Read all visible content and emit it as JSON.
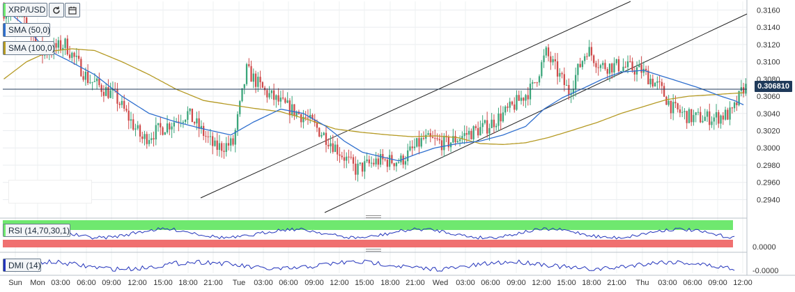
{
  "instrument": {
    "symbol_label": "XRP/USD",
    "refresh_icon": "refresh-icon",
    "calendar_icon": "calendar-icon"
  },
  "indicators": {
    "sma50": {
      "label": "SMA (50,0)",
      "color": "#2f6fce"
    },
    "sma100": {
      "label": "SMA (100,0)",
      "color": "#b59a24"
    },
    "rsi": {
      "label": "RSI (14,70,30,1)",
      "overbought_color": "#6fe86f",
      "oversold_color": "#f07070",
      "line_color": "#2233bb",
      "ylabel": "0.0000"
    },
    "dmi": {
      "label": "DMI (14)",
      "line_color": "#2233bb",
      "ylabel": "-0.0000"
    }
  },
  "colors": {
    "up": "#3aa57a",
    "down": "#cf4a4a",
    "price_line": "#1f3a5a",
    "axis_text": "#333333"
  },
  "current_price": "0.306810",
  "chart_data": {
    "type": "candlestick",
    "ylim": [
      0.2925,
      0.317
    ],
    "yticks": [
      "0.2940",
      "0.2960",
      "0.2980",
      "0.3000",
      "0.3020",
      "0.3040",
      "0.3060",
      "0.3080",
      "0.3100",
      "0.3120",
      "0.3140",
      "0.3160"
    ],
    "xticks": [
      "Sun",
      "Mon",
      "03:00",
      "06:00",
      "09:00",
      "12:00",
      "15:00",
      "18:00",
      "21:00",
      "Tue",
      "03:00",
      "06:00",
      "09:00",
      "12:00",
      "15:00",
      "18:00",
      "21:00",
      "Wed",
      "03:00",
      "06:00",
      "09:00",
      "12:00",
      "15:00",
      "18:00",
      "21:00",
      "Thu",
      "03:00",
      "06:00",
      "09:00",
      "12:00"
    ],
    "anchors": [
      [
        0,
        0.316
      ],
      [
        10,
        0.315
      ],
      [
        18,
        0.311
      ],
      [
        28,
        0.312
      ],
      [
        38,
        0.308
      ],
      [
        50,
        0.306
      ],
      [
        62,
        0.301
      ],
      [
        72,
        0.3025
      ],
      [
        82,
        0.304
      ],
      [
        94,
        0.3
      ],
      [
        102,
        0.3005
      ],
      [
        108,
        0.309
      ],
      [
        116,
        0.3065
      ],
      [
        124,
        0.305
      ],
      [
        134,
        0.3035
      ],
      [
        144,
        0.301
      ],
      [
        156,
        0.2975
      ],
      [
        166,
        0.2985
      ],
      [
        176,
        0.2985
      ],
      [
        186,
        0.301
      ],
      [
        196,
        0.3005
      ],
      [
        204,
        0.3015
      ],
      [
        214,
        0.3025
      ],
      [
        224,
        0.3045
      ],
      [
        234,
        0.307
      ],
      [
        240,
        0.311
      ],
      [
        250,
        0.3065
      ],
      [
        258,
        0.3115
      ],
      [
        264,
        0.3095
      ],
      [
        272,
        0.3095
      ],
      [
        282,
        0.309
      ],
      [
        290,
        0.307
      ],
      [
        296,
        0.3045
      ],
      [
        304,
        0.3035
      ],
      [
        314,
        0.3035
      ],
      [
        322,
        0.304
      ],
      [
        327,
        0.307
      ]
    ],
    "sma50": [
      [
        0,
        0.3162
      ],
      [
        10,
        0.314
      ],
      [
        18,
        0.3115
      ],
      [
        28,
        0.3102
      ],
      [
        40,
        0.3085
      ],
      [
        52,
        0.306
      ],
      [
        64,
        0.304
      ],
      [
        76,
        0.303
      ],
      [
        88,
        0.3022
      ],
      [
        100,
        0.3015
      ],
      [
        110,
        0.303
      ],
      [
        122,
        0.3045
      ],
      [
        132,
        0.304
      ],
      [
        142,
        0.3025
      ],
      [
        150,
        0.3008
      ],
      [
        158,
        0.2995
      ],
      [
        166,
        0.299
      ],
      [
        174,
        0.2985
      ],
      [
        182,
        0.2993
      ],
      [
        190,
        0.3
      ],
      [
        200,
        0.3005
      ],
      [
        210,
        0.3008
      ],
      [
        220,
        0.3015
      ],
      [
        230,
        0.3025
      ],
      [
        238,
        0.3045
      ],
      [
        246,
        0.3058
      ],
      [
        256,
        0.307
      ],
      [
        264,
        0.308
      ],
      [
        272,
        0.3088
      ],
      [
        282,
        0.309
      ],
      [
        294,
        0.308
      ],
      [
        306,
        0.307
      ],
      [
        316,
        0.306
      ],
      [
        322,
        0.3055
      ],
      [
        326,
        0.305
      ]
    ],
    "sma100": [
      [
        0,
        0.308
      ],
      [
        10,
        0.31
      ],
      [
        20,
        0.3112
      ],
      [
        30,
        0.3115
      ],
      [
        40,
        0.3113
      ],
      [
        52,
        0.31
      ],
      [
        64,
        0.3085
      ],
      [
        76,
        0.3068
      ],
      [
        88,
        0.3055
      ],
      [
        100,
        0.305
      ],
      [
        110,
        0.3046
      ],
      [
        122,
        0.3042
      ],
      [
        134,
        0.3033
      ],
      [
        146,
        0.3022
      ],
      [
        158,
        0.3018
      ],
      [
        170,
        0.3015
      ],
      [
        180,
        0.3013
      ],
      [
        190,
        0.3014
      ],
      [
        200,
        0.3012
      ],
      [
        210,
        0.3005
      ],
      [
        220,
        0.3004
      ],
      [
        230,
        0.3006
      ],
      [
        240,
        0.3012
      ],
      [
        250,
        0.302
      ],
      [
        262,
        0.303
      ],
      [
        272,
        0.304
      ],
      [
        282,
        0.3048
      ],
      [
        292,
        0.3056
      ],
      [
        302,
        0.306
      ],
      [
        314,
        0.3062
      ],
      [
        326,
        0.3064
      ]
    ]
  }
}
